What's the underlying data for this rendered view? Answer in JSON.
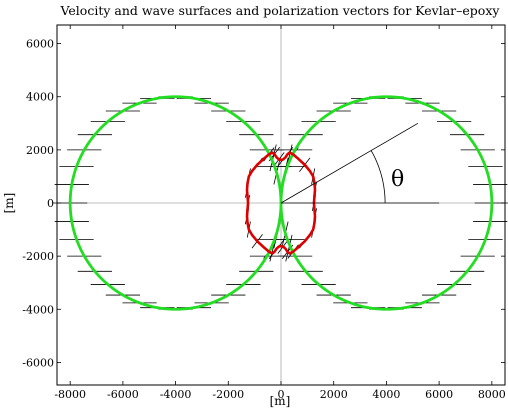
{
  "chart_data": {
    "type": "line",
    "title": "Velocity and wave surfaces and polarization vectors for Kevlar–epoxy",
    "xlabel": "[m]",
    "ylabel": "[m]",
    "xlim": [
      -8500,
      8500
    ],
    "ylim": [
      -6850,
      6700
    ],
    "xticks": [
      -8000,
      -6000,
      -4000,
      -2000,
      0,
      2000,
      4000,
      6000,
      8000
    ],
    "yticks": [
      -6000,
      -4000,
      -2000,
      0,
      2000,
      4000,
      6000
    ],
    "angle_symbol": "θ",
    "ray_angle_deg": 30,
    "ray_length_m": 6000,
    "arc_radius_m": 3950,
    "colors": {
      "velocity_surface": "#22dd22",
      "wave_surface": "#dd0000",
      "vectors": "#000000",
      "axes": "#000000",
      "crosshair": "#aaaaaa"
    },
    "series": [
      {
        "kind": "velocity-surface",
        "polar_r_m": 8000,
        "description_formula": "r = 8000 * |cos(theta)|",
        "lobes": [
          {
            "center_x": 4000,
            "center_y": 0,
            "radius": 4000
          },
          {
            "center_x": -4000,
            "center_y": 0,
            "radius": 4000
          }
        ]
      },
      {
        "kind": "wave-surface",
        "points": [
          [
            1250,
            0
          ],
          [
            1270,
            250
          ],
          [
            1290,
            500
          ],
          [
            1270,
            750
          ],
          [
            1220,
            1000
          ],
          [
            1100,
            1200
          ],
          [
            900,
            1440
          ],
          [
            660,
            1660
          ],
          [
            460,
            1830
          ],
          [
            330,
            1900
          ],
          [
            250,
            1840
          ],
          [
            170,
            1720
          ],
          [
            80,
            1640
          ],
          [
            0,
            1620
          ]
        ]
      }
    ]
  }
}
